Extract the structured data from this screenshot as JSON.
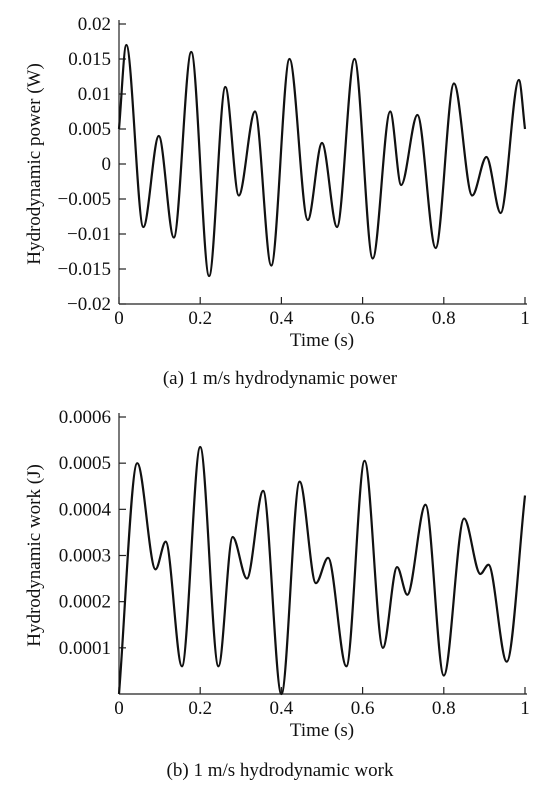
{
  "chart_data": [
    {
      "type": "line",
      "caption": "(a) 1 m/s hydrodynamic power",
      "xlabel": "Time (s)",
      "ylabel": "Hydrodynamic power (W)",
      "xlim": [
        0,
        1
      ],
      "ylim": [
        -0.02,
        0.02
      ],
      "grid": false,
      "xticks": [
        0,
        0.2,
        0.4,
        0.6,
        0.8,
        1
      ],
      "xtick_labels": [
        "0",
        "0.2",
        "0.4",
        "0.6",
        "0.8",
        "1"
      ],
      "yticks": [
        -0.02,
        -0.015,
        -0.01,
        -0.005,
        0,
        0.005,
        0.01,
        0.015,
        0.02
      ],
      "ytick_labels": [
        "−0.02",
        "−0.015",
        "−0.01",
        "−0.005",
        "0",
        "0.005",
        "0.01",
        "0.015",
        "0.02"
      ],
      "series": [
        {
          "x": [
            0,
            0.018,
            0.06,
            0.098,
            0.135,
            0.178,
            0.222,
            0.262,
            0.295,
            0.335,
            0.375,
            0.42,
            0.465,
            0.5,
            0.537,
            0.58,
            0.625,
            0.668,
            0.695,
            0.735,
            0.78,
            0.825,
            0.87,
            0.905,
            0.94,
            0.985,
            1.0
          ],
          "y": [
            0.005,
            0.017,
            -0.009,
            0.004,
            -0.0105,
            0.016,
            -0.016,
            0.011,
            -0.0045,
            0.0075,
            -0.0145,
            0.015,
            -0.008,
            0.003,
            -0.009,
            0.015,
            -0.0135,
            0.0075,
            -0.003,
            0.007,
            -0.012,
            0.0115,
            -0.0045,
            0.001,
            -0.007,
            0.012,
            0.005
          ]
        }
      ]
    },
    {
      "type": "line",
      "caption": "(b) 1 m/s hydrodynamic work",
      "xlabel": "Time (s)",
      "ylabel": "Hydrodynamic work (J)",
      "xlim": [
        0,
        1
      ],
      "ylim": [
        0,
        0.0006
      ],
      "grid": false,
      "xticks": [
        0,
        0.2,
        0.4,
        0.6,
        0.8,
        1
      ],
      "xtick_labels": [
        "0",
        "0.2",
        "0.4",
        "0.6",
        "0.8",
        "1"
      ],
      "yticks": [
        0.0001,
        0.0002,
        0.0003,
        0.0004,
        0.0005,
        0.0006
      ],
      "ytick_labels": [
        "0.0001",
        "0.0002",
        "0.0003",
        "0.0004",
        "0.0005",
        "0.0006"
      ],
      "series": [
        {
          "x": [
            0,
            0.045,
            0.09,
            0.115,
            0.155,
            0.2,
            0.245,
            0.28,
            0.315,
            0.355,
            0.4,
            0.445,
            0.485,
            0.515,
            0.56,
            0.605,
            0.65,
            0.685,
            0.71,
            0.755,
            0.8,
            0.85,
            0.89,
            0.91,
            0.955,
            1.0
          ],
          "y": [
            0,
            0.0005,
            0.00027,
            0.00033,
            6e-05,
            0.000535,
            6e-05,
            0.00034,
            0.00025,
            0.00044,
            0.0,
            0.00046,
            0.00024,
            0.000295,
            6e-05,
            0.000505,
            0.0001,
            0.000275,
            0.000215,
            0.00041,
            4e-05,
            0.00038,
            0.00026,
            0.00028,
            7e-05,
            0.00043
          ]
        }
      ]
    }
  ]
}
